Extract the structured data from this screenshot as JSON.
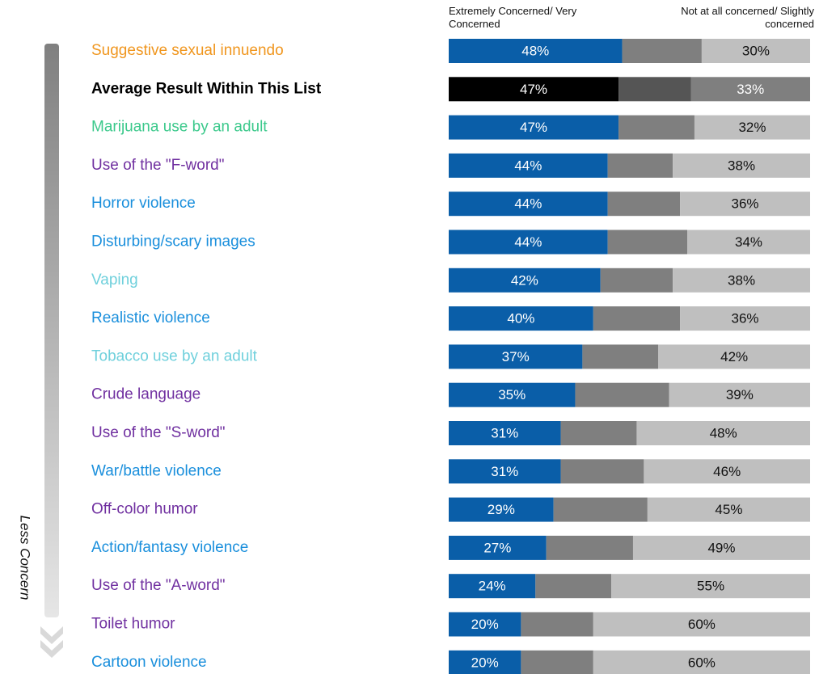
{
  "chart_data": {
    "type": "stacked-bar-horizontal",
    "annotation": "Less Concern",
    "xlim": [
      0,
      100
    ],
    "categories": [
      "Suggestive sexual innuendo",
      "Average Result Within This List",
      "Marijuana use by an adult",
      "Use of the \"F-word\"",
      "Horror violence",
      "Disturbing/scary images",
      "Vaping",
      "Realistic violence",
      "Tobacco use by an adult",
      "Crude language",
      "Use of the \"S-word\"",
      "War/battle violence",
      "Off-color humor",
      "Action/fantasy violence",
      "Use of the \"A-word\"",
      "Toilet humor",
      "Cartoon violence"
    ],
    "category_styles": [
      {
        "color": "#f0961e"
      },
      {
        "color": "#000000",
        "bold": true
      },
      {
        "color": "#3cc98c"
      },
      {
        "color": "#7030a0"
      },
      {
        "color": "#1a8fdc"
      },
      {
        "color": "#1a8fdc"
      },
      {
        "color": "#6fd0dc"
      },
      {
        "color": "#1a8fdc"
      },
      {
        "color": "#6fd0dc"
      },
      {
        "color": "#7030a0"
      },
      {
        "color": "#7030a0"
      },
      {
        "color": "#1a8fdc"
      },
      {
        "color": "#7030a0"
      },
      {
        "color": "#1a8fdc"
      },
      {
        "color": "#7030a0"
      },
      {
        "color": "#7030a0"
      },
      {
        "color": "#1a8fdc"
      }
    ],
    "series": [
      {
        "name": "Extremely Concerned/ Very Concerned",
        "color": "#0a5ea8",
        "colors": [
          "#0a5ea8",
          "#000000",
          "#0a5ea8",
          "#0a5ea8",
          "#0a5ea8",
          "#0a5ea8",
          "#0a5ea8",
          "#0a5ea8",
          "#0a5ea8",
          "#0a5ea8",
          "#0a5ea8",
          "#0a5ea8",
          "#0a5ea8",
          "#0a5ea8",
          "#0a5ea8",
          "#0a5ea8",
          "#0a5ea8"
        ],
        "values": [
          48,
          47,
          47,
          44,
          44,
          44,
          42,
          40,
          37,
          35,
          31,
          31,
          29,
          27,
          24,
          20,
          20
        ],
        "value_labels": [
          "48%",
          "47%",
          "47%",
          "44%",
          "44%",
          "44%",
          "42%",
          "40%",
          "37%",
          "35%",
          "31%",
          "31%",
          "29%",
          "27%",
          "24%",
          "20%",
          "20%"
        ]
      },
      {
        "color": "#7f7f7f",
        "colors": [
          "#7f7f7f",
          "#555555",
          "#7f7f7f",
          "#7f7f7f",
          "#7f7f7f",
          "#7f7f7f",
          "#7f7f7f",
          "#7f7f7f",
          "#7f7f7f",
          "#7f7f7f",
          "#7f7f7f",
          "#7f7f7f",
          "#7f7f7f",
          "#7f7f7f",
          "#7f7f7f",
          "#7f7f7f",
          "#7f7f7f"
        ],
        "values": [
          22,
          20,
          21,
          18,
          20,
          22,
          20,
          24,
          21,
          26,
          21,
          23,
          26,
          24,
          21,
          20,
          20
        ]
      },
      {
        "name": "Not at all concerned/ Slightly concerned",
        "color": "#bfbfbf",
        "colors": [
          "#bfbfbf",
          "#7f7f7f",
          "#bfbfbf",
          "#bfbfbf",
          "#bfbfbf",
          "#bfbfbf",
          "#bfbfbf",
          "#bfbfbf",
          "#bfbfbf",
          "#bfbfbf",
          "#bfbfbf",
          "#bfbfbf",
          "#bfbfbf",
          "#bfbfbf",
          "#bfbfbf",
          "#bfbfbf",
          "#bfbfbf"
        ],
        "values": [
          30,
          33,
          32,
          38,
          36,
          34,
          38,
          36,
          42,
          39,
          48,
          46,
          45,
          49,
          55,
          60,
          60
        ],
        "value_labels": [
          "30%",
          "33%",
          "32%",
          "38%",
          "36%",
          "34%",
          "38%",
          "36%",
          "42%",
          "39%",
          "48%",
          "46%",
          "45%",
          "49%",
          "55%",
          "60%",
          "60%"
        ]
      }
    ]
  }
}
